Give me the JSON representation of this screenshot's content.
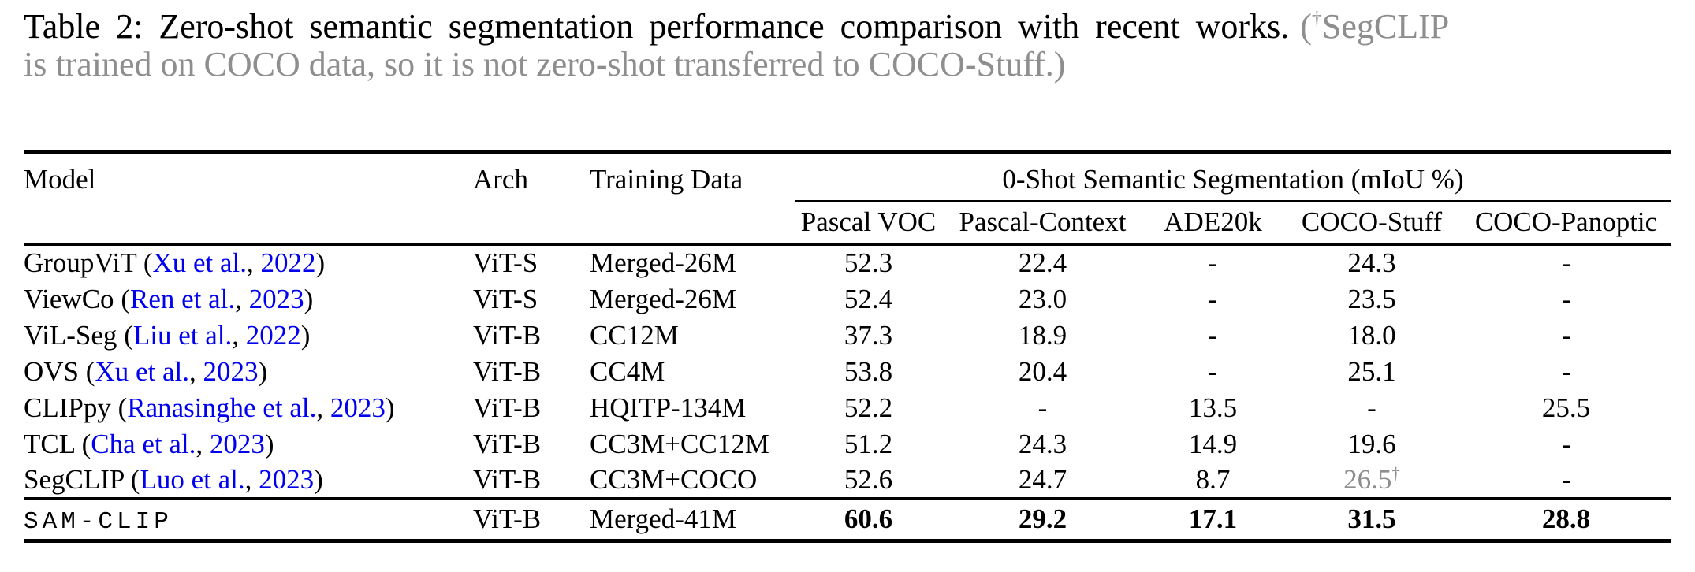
{
  "colors": {
    "text": "#000000",
    "muted_gray": "#8E8E8E",
    "link_blue": "#0000EE",
    "rule_black": "#000000",
    "background": "#FFFFFF"
  },
  "caption": {
    "black_text": "Table 2: Zero-shot semantic segmentation performance comparison with recent works.",
    "gray_open": "(",
    "gray_dagger": "†",
    "gray_line1_name": "SegCLIP",
    "gray_line2": "is trained on COCO data, so it is not zero-shot transferred to COCO-Stuff.)"
  },
  "table": {
    "header": {
      "model": "Model",
      "arch": "Arch",
      "training_data": "Training Data",
      "group": "0-Shot Semantic Segmentation (mIoU %)",
      "metrics": [
        "Pascal VOC",
        "Pascal-Context",
        "ADE20k",
        "COCO-Stuff",
        "COCO-Panoptic"
      ]
    },
    "rows": [
      {
        "model": "GroupViT",
        "cite_authors": "Xu et al.",
        "cite_year": "2022",
        "arch": "ViT-S",
        "training_data": "Merged-26M",
        "values": [
          {
            "v": "52.3"
          },
          {
            "v": "22.4"
          },
          {
            "v": "-"
          },
          {
            "v": "24.3"
          },
          {
            "v": "-"
          }
        ]
      },
      {
        "model": "ViewCo",
        "cite_authors": "Ren et al.",
        "cite_year": "2023",
        "arch": "ViT-S",
        "training_data": "Merged-26M",
        "values": [
          {
            "v": "52.4"
          },
          {
            "v": "23.0"
          },
          {
            "v": "-"
          },
          {
            "v": "23.5"
          },
          {
            "v": "-"
          }
        ]
      },
      {
        "model": "ViL-Seg",
        "cite_authors": "Liu et al.",
        "cite_year": "2022",
        "arch": "ViT-B",
        "training_data": "CC12M",
        "values": [
          {
            "v": "37.3"
          },
          {
            "v": "18.9"
          },
          {
            "v": "-"
          },
          {
            "v": "18.0"
          },
          {
            "v": "-"
          }
        ]
      },
      {
        "model": "OVS",
        "cite_authors": "Xu et al.",
        "cite_year": "2023",
        "arch": "ViT-B",
        "training_data": "CC4M",
        "values": [
          {
            "v": "53.8"
          },
          {
            "v": "20.4"
          },
          {
            "v": "-"
          },
          {
            "v": "25.1"
          },
          {
            "v": "-"
          }
        ]
      },
      {
        "model": "CLIPpy",
        "cite_authors": "Ranasinghe et al.",
        "cite_year": "2023",
        "arch": "ViT-B",
        "training_data": "HQITP-134M",
        "values": [
          {
            "v": "52.2"
          },
          {
            "v": "-"
          },
          {
            "v": "13.5"
          },
          {
            "v": "-"
          },
          {
            "v": "25.5"
          }
        ]
      },
      {
        "model": "TCL",
        "cite_authors": "Cha et al.",
        "cite_year": "2023",
        "arch": "ViT-B",
        "training_data": "CC3M+CC12M",
        "values": [
          {
            "v": "51.2"
          },
          {
            "v": "24.3"
          },
          {
            "v": "14.9"
          },
          {
            "v": "19.6"
          },
          {
            "v": "-"
          }
        ]
      },
      {
        "model": "SegCLIP",
        "cite_authors": "Luo et al.",
        "cite_year": "2023",
        "arch": "ViT-B",
        "training_data": "CC3M+COCO",
        "values": [
          {
            "v": "52.6"
          },
          {
            "v": "24.7"
          },
          {
            "v": "8.7"
          },
          {
            "v": "26.5",
            "gray": true,
            "sup": "†"
          },
          {
            "v": "-"
          }
        ]
      },
      {
        "model": "SAM-CLIP",
        "mono": true,
        "separator_above": true,
        "arch": "ViT-B",
        "training_data": "Merged-41M",
        "values": [
          {
            "v": "60.6",
            "bold": true
          },
          {
            "v": "29.2",
            "bold": true
          },
          {
            "v": "17.1",
            "bold": true
          },
          {
            "v": "31.5",
            "bold": true
          },
          {
            "v": "28.8",
            "bold": true
          }
        ]
      }
    ]
  }
}
